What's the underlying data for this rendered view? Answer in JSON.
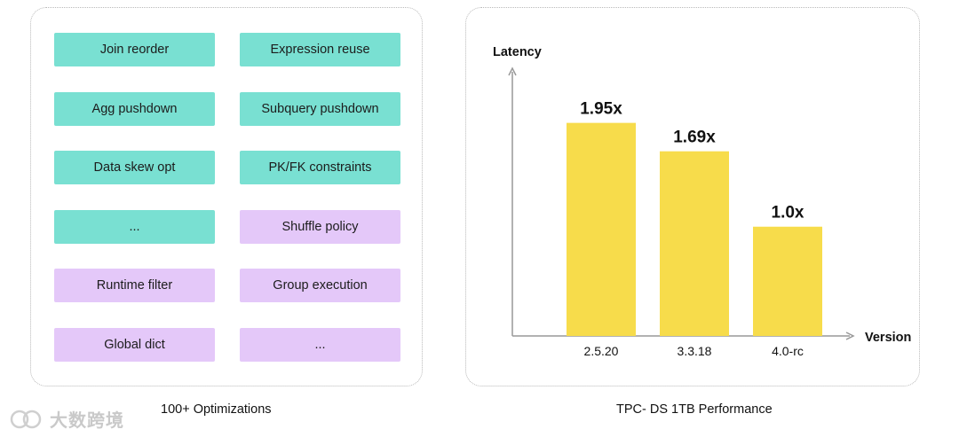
{
  "left_panel": {
    "items": [
      {
        "label": "Join reorder",
        "color": "#79e0d2"
      },
      {
        "label": "Expression reuse",
        "color": "#79e0d2"
      },
      {
        "label": "Agg pushdown",
        "color": "#79e0d2"
      },
      {
        "label": "Subquery pushdown",
        "color": "#79e0d2"
      },
      {
        "label": "Data skew opt",
        "color": "#79e0d2"
      },
      {
        "label": "PK/FK constraints",
        "color": "#79e0d2"
      },
      {
        "label": "...",
        "color": "#79e0d2"
      },
      {
        "label": "Shuffle policy",
        "color": "#e4c8f9"
      },
      {
        "label": "Runtime filter",
        "color": "#e4c8f9"
      },
      {
        "label": "Group execution",
        "color": "#e4c8f9"
      },
      {
        "label": "Global dict",
        "color": "#e4c8f9"
      },
      {
        "label": "...",
        "color": "#e4c8f9"
      }
    ],
    "caption": "100+  Optimizations"
  },
  "right_panel": {
    "caption": "TPC- DS 1TB Performance"
  },
  "watermark": {
    "text": "大数跨境"
  },
  "chart_data": {
    "type": "bar",
    "categories": [
      "2.5.20",
      "3.3.18",
      "4.0-rc"
    ],
    "values": [
      1.95,
      1.69,
      1.0
    ],
    "data_labels": [
      "1.95x",
      "1.69x",
      "1.0x"
    ],
    "xlabel": "Version",
    "ylabel": "Latency",
    "ylim": [
      0,
      2.45
    ],
    "bar_color": "#f7dc4b",
    "grid": false
  }
}
